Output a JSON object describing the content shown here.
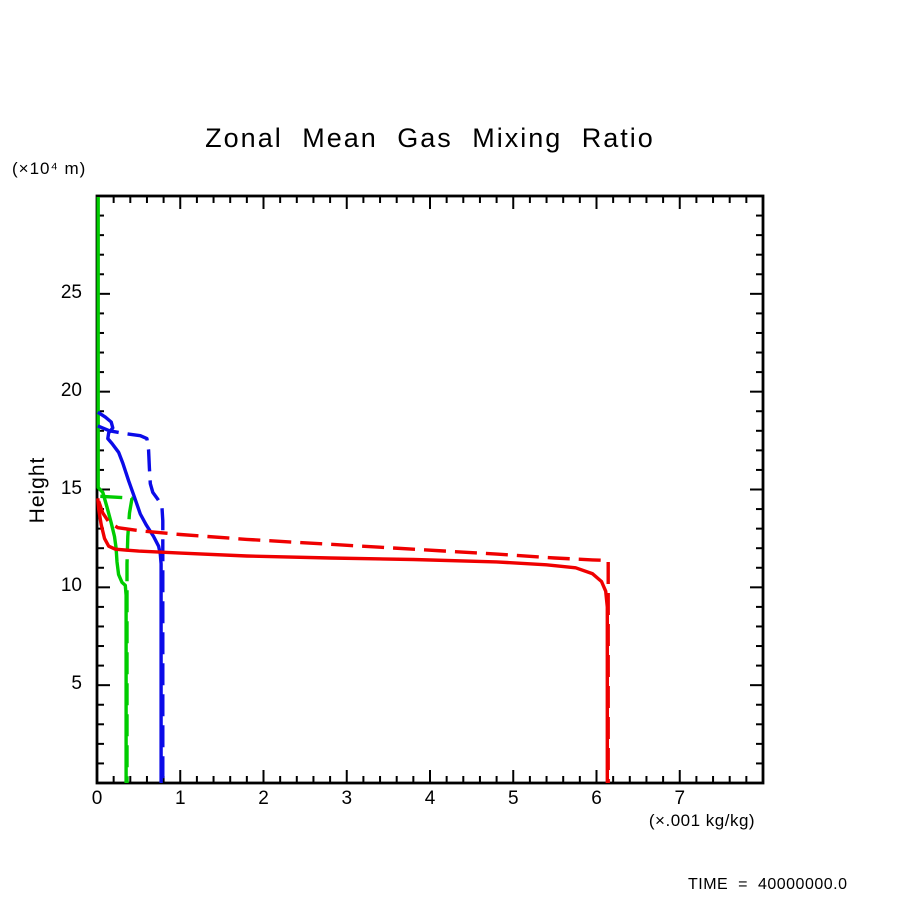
{
  "title": "Zonal Mean Gas Mixing Ratio",
  "y_axis_unit": "(×10⁴ m)",
  "y_axis_label": "Height",
  "x_axis_unit": "(×.001 kg/kg)",
  "footer": {
    "time_label": "TIME = 40000000.0"
  },
  "chart_data": {
    "type": "line",
    "title": "Zonal Mean Gas Mixing Ratio",
    "xlabel": "(×.001 kg/kg)",
    "ylabel": "Height (×10⁴ m)",
    "xlim": [
      0,
      8
    ],
    "ylim": [
      0,
      30
    ],
    "grid": false,
    "legend": "none",
    "x_major_ticks": [
      0,
      1,
      2,
      3,
      4,
      5,
      6,
      7
    ],
    "x_tick_labels": [
      "0",
      "1",
      "2",
      "3",
      "4",
      "5",
      "6",
      "7"
    ],
    "x_minor_step": 0.2,
    "y_major_ticks": [
      5,
      10,
      15,
      20,
      25
    ],
    "y_tick_labels": [
      "5",
      "10",
      "15",
      "20",
      "25"
    ],
    "y_minor_step": 1,
    "colors": {
      "red": "#EF0000",
      "green": "#00CC00",
      "blue": "#0B0BE8"
    },
    "series": [
      {
        "name": "green-solid",
        "color": "green",
        "style": "solid",
        "points": [
          [
            0.015,
            29.95
          ],
          [
            0.015,
            15.1
          ],
          [
            0.07,
            14.85
          ],
          [
            0.12,
            14.1
          ],
          [
            0.17,
            13.3
          ],
          [
            0.21,
            12.6
          ],
          [
            0.23,
            12.0
          ],
          [
            0.24,
            11.3
          ],
          [
            0.26,
            10.65
          ],
          [
            0.3,
            10.25
          ],
          [
            0.34,
            10.1
          ],
          [
            0.35,
            9.6
          ],
          [
            0.35,
            0
          ]
        ]
      },
      {
        "name": "green-dashed",
        "color": "green",
        "style": "dashed",
        "points": [
          [
            0.04,
            14.65
          ],
          [
            0.25,
            14.6
          ],
          [
            0.42,
            14.55
          ],
          [
            0.39,
            13.8
          ],
          [
            0.37,
            12.6
          ],
          [
            0.36,
            11.2
          ],
          [
            0.36,
            0
          ]
        ]
      },
      {
        "name": "blue-solid",
        "color": "blue",
        "style": "solid",
        "points": [
          [
            0.01,
            18.95
          ],
          [
            0.1,
            18.7
          ],
          [
            0.17,
            18.45
          ],
          [
            0.19,
            18.15
          ],
          [
            0.14,
            17.9
          ],
          [
            0.13,
            17.6
          ],
          [
            0.18,
            17.35
          ],
          [
            0.26,
            16.9
          ],
          [
            0.31,
            16.35
          ],
          [
            0.38,
            15.45
          ],
          [
            0.45,
            14.6
          ],
          [
            0.52,
            13.75
          ],
          [
            0.59,
            13.2
          ],
          [
            0.68,
            12.6
          ],
          [
            0.74,
            12.1
          ],
          [
            0.76,
            11.7
          ],
          [
            0.77,
            11.2
          ],
          [
            0.77,
            0
          ]
        ]
      },
      {
        "name": "blue-dashed",
        "color": "blue",
        "style": "dashed",
        "points": [
          [
            0.01,
            18.25
          ],
          [
            0.15,
            18.0
          ],
          [
            0.35,
            17.85
          ],
          [
            0.52,
            17.75
          ],
          [
            0.6,
            17.6
          ],
          [
            0.62,
            17.0
          ],
          [
            0.63,
            16.1
          ],
          [
            0.64,
            15.3
          ],
          [
            0.67,
            14.85
          ],
          [
            0.73,
            14.5
          ],
          [
            0.78,
            14.15
          ],
          [
            0.79,
            13.4
          ],
          [
            0.79,
            0
          ]
        ]
      },
      {
        "name": "red-solid",
        "color": "red",
        "style": "solid",
        "points": [
          [
            0.01,
            14.55
          ],
          [
            0.02,
            14.0
          ],
          [
            0.05,
            13.2
          ],
          [
            0.09,
            12.5
          ],
          [
            0.14,
            12.1
          ],
          [
            0.22,
            11.95
          ],
          [
            0.5,
            11.85
          ],
          [
            1.0,
            11.75
          ],
          [
            1.8,
            11.6
          ],
          [
            2.8,
            11.5
          ],
          [
            3.8,
            11.42
          ],
          [
            4.8,
            11.3
          ],
          [
            5.4,
            11.15
          ],
          [
            5.75,
            11.0
          ],
          [
            5.95,
            10.7
          ],
          [
            6.06,
            10.3
          ],
          [
            6.11,
            9.8
          ],
          [
            6.13,
            9.0
          ],
          [
            6.13,
            0
          ]
        ]
      },
      {
        "name": "red-dashed",
        "color": "red",
        "style": "dashed",
        "points": [
          [
            0.02,
            14.4
          ],
          [
            0.07,
            13.8
          ],
          [
            0.14,
            13.35
          ],
          [
            0.25,
            13.05
          ],
          [
            0.5,
            12.9
          ],
          [
            1.0,
            12.7
          ],
          [
            1.8,
            12.45
          ],
          [
            2.8,
            12.2
          ],
          [
            3.8,
            11.95
          ],
          [
            4.8,
            11.7
          ],
          [
            5.5,
            11.5
          ],
          [
            5.95,
            11.4
          ],
          [
            6.14,
            11.37
          ],
          [
            6.14,
            0
          ]
        ]
      }
    ]
  }
}
